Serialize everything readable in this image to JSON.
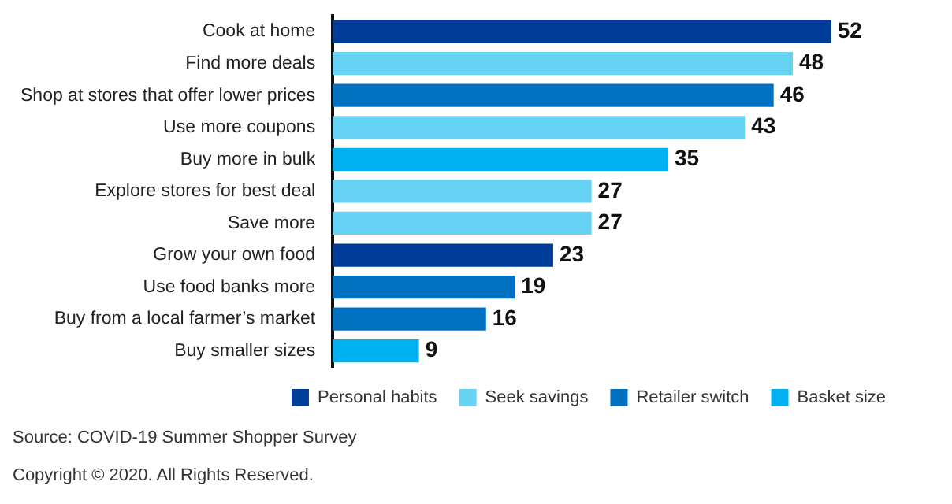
{
  "chart_data": {
    "type": "bar",
    "orientation": "horizontal",
    "data_labels": true,
    "tick_labels": "y",
    "legend": "bottom right",
    "categories": [
      "Cook at home",
      "Find more deals",
      "Shop at stores that offer lower prices",
      "Use more coupons",
      "Buy more in bulk",
      "Explore stores for best deal",
      "Save more",
      "Grow your own food",
      "Use food banks more",
      "Buy from a local farmer’s market",
      "Buy smaller sizes"
    ],
    "series": [
      {
        "name": "Personal habits",
        "color": "#003d99",
        "values": [
          52,
          null,
          null,
          null,
          null,
          null,
          null,
          23,
          null,
          null,
          null
        ]
      },
      {
        "name": "Seek savings",
        "color": "#66d3f5",
        "values": [
          null,
          48,
          null,
          43,
          null,
          27,
          27,
          null,
          null,
          null,
          null
        ]
      },
      {
        "name": "Retailer switch",
        "color": "#0070c0",
        "values": [
          null,
          null,
          46,
          null,
          null,
          null,
          null,
          null,
          19,
          16,
          null
        ]
      },
      {
        "name": "Basket size",
        "color": "#00b0f0",
        "values": [
          null,
          null,
          null,
          null,
          35,
          null,
          null,
          null,
          null,
          null,
          9
        ]
      }
    ],
    "annotations": [
      "Source: COVID-19 Summer Shopper Survey",
      "Copyright © 2020. All Rights Reserved."
    ]
  }
}
